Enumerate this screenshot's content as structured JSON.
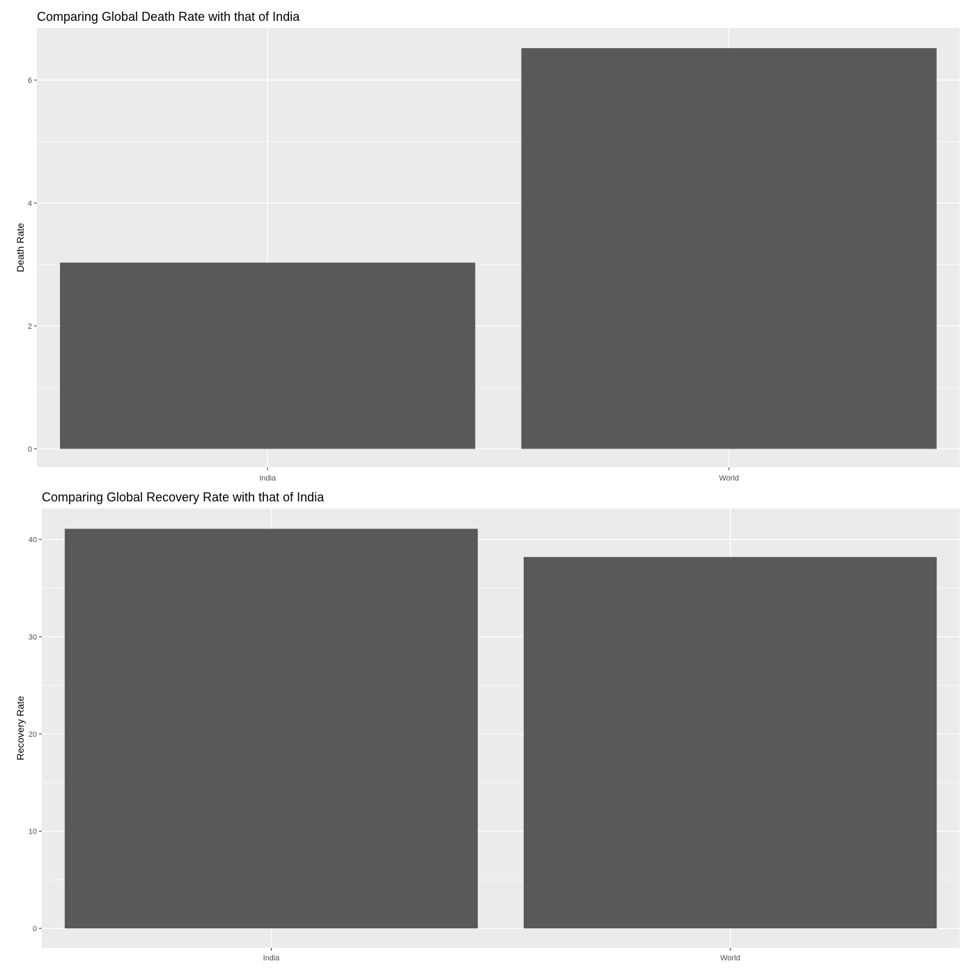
{
  "chart_data": [
    {
      "type": "bar",
      "title": "Comparing Global Death Rate with that of India",
      "xlabel": "",
      "ylabel": "Death Rate",
      "categories": [
        "India",
        "World"
      ],
      "values": [
        3.03,
        6.52
      ],
      "ylim": [
        -0.3,
        6.85
      ],
      "yticks": [
        0,
        2,
        4,
        6
      ],
      "ytick_labels": [
        "0",
        "2",
        "4",
        "6"
      ],
      "grid": true
    },
    {
      "type": "bar",
      "title": "Comparing Global Recovery Rate with that of India",
      "xlabel": "",
      "ylabel": "Recovery Rate",
      "categories": [
        "India",
        "World"
      ],
      "values": [
        41.1,
        38.2
      ],
      "ylim": [
        -2.0,
        43.2
      ],
      "yticks": [
        0,
        10,
        20,
        30,
        40
      ],
      "ytick_labels": [
        "0",
        "10",
        "20",
        "30",
        "40"
      ],
      "grid": true
    }
  ],
  "colors": {
    "panel_background": "#ebebeb",
    "bar_fill": "#595959",
    "grid": "#ffffff",
    "text": "#000000",
    "tick_text": "#4d4d4d"
  }
}
